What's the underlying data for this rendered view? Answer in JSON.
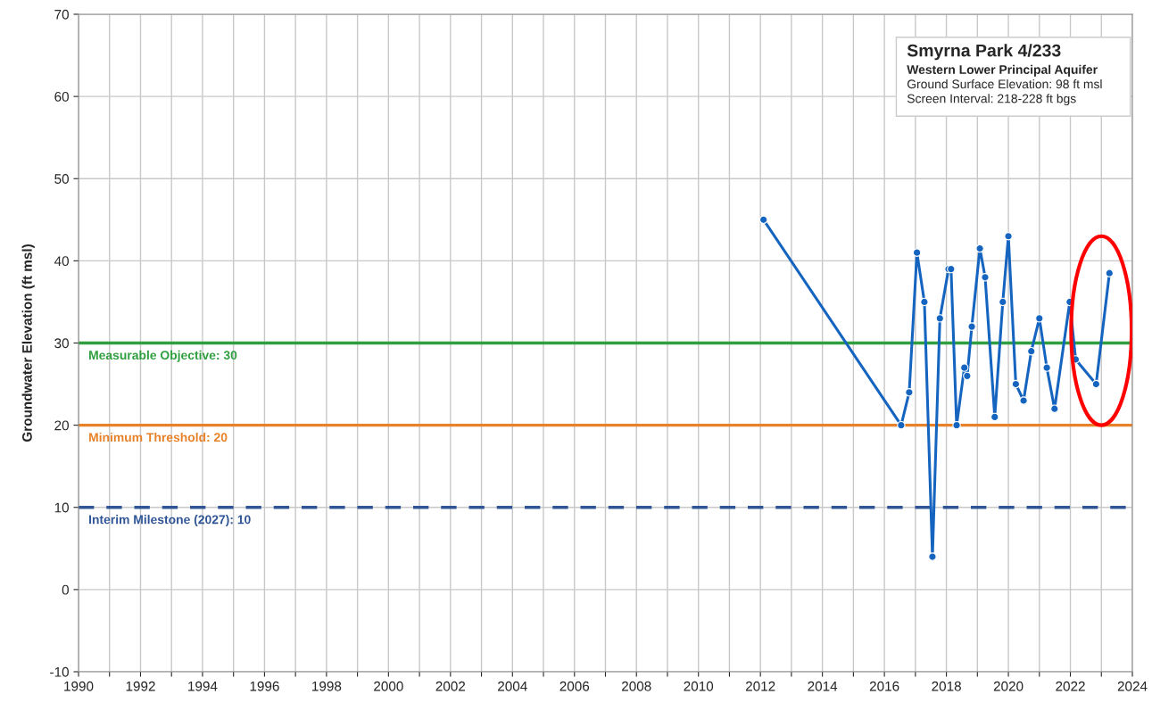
{
  "chart_data": {
    "type": "line",
    "title": "Smyrna Park 4/233",
    "subtitle": "Western Lower Principal Aquifer",
    "annotations": [
      "Ground Surface Elevation: 98 ft msl",
      "Screen Interval: 218-228 ft bgs"
    ],
    "ylabel": "Groundwater Elevation (ft msl)",
    "x": [
      2012.1,
      2016.54,
      2016.8,
      2017.05,
      2017.29,
      2017.55,
      2017.79,
      2018.07,
      2018.15,
      2018.33,
      2018.58,
      2018.67,
      2018.82,
      2019.08,
      2019.25,
      2019.56,
      2019.82,
      2020.0,
      2020.24,
      2020.49,
      2020.74,
      2021.0,
      2021.24,
      2021.49,
      2021.98,
      2022.17,
      2022.83,
      2023.26
    ],
    "series": [
      {
        "color": "#1565c0",
        "values": [
          45,
          20,
          24,
          41,
          35,
          4,
          33,
          39,
          39,
          20,
          27,
          26,
          32,
          41.5,
          38,
          21,
          35,
          43,
          25,
          23,
          29,
          33,
          27,
          22,
          35,
          28,
          25,
          38.5
        ]
      }
    ],
    "marker": "circle",
    "line_style": "solid",
    "grid": true,
    "xlim": [
      1990,
      2024
    ],
    "xticks": [
      1990,
      {
        "value": 1991,
        "label": null
      },
      1992,
      {
        "value": 1993,
        "label": null
      },
      1994,
      {
        "value": 1995,
        "label": null
      },
      1996,
      {
        "value": 1997,
        "label": null
      },
      1998,
      {
        "value": 1999,
        "label": null
      },
      2000,
      {
        "value": 2001,
        "label": null
      },
      2002,
      {
        "value": 2003,
        "label": null
      },
      2004,
      {
        "value": 2005,
        "label": null
      },
      2006,
      {
        "value": 2007,
        "label": null
      },
      2008,
      {
        "value": 2009,
        "label": null
      },
      2010,
      {
        "value": 2011,
        "label": null
      },
      2012,
      {
        "value": 2013,
        "label": null
      },
      2014,
      {
        "value": 2015,
        "label": null
      },
      2016,
      {
        "value": 2017,
        "label": null
      },
      2018,
      {
        "value": 2019,
        "label": null
      },
      2020,
      {
        "value": 2021,
        "label": null
      },
      2022,
      {
        "value": 2023,
        "label": null
      },
      2024
    ],
    "ylim": [
      -10,
      70
    ],
    "yticks": [
      -10,
      0,
      10,
      20,
      30,
      40,
      50,
      60,
      70
    ],
    "ref_lines": [
      {
        "axis": "y",
        "value": 30,
        "label": "Measurable Objective: 30",
        "color": "#2e9e3e"
      },
      {
        "axis": "y",
        "value": 20,
        "label": "Minimum Threshold: 20",
        "color": "#e8822a"
      },
      {
        "axis": "y",
        "value": 10,
        "label": "Interim Milestone (2027): 10",
        "color": "#2f5597",
        "line_style": "dashed"
      }
    ]
  }
}
